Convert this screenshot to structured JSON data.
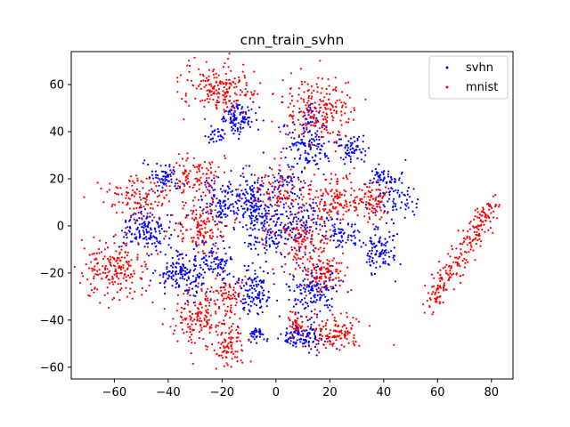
{
  "chart_data": {
    "type": "scatter",
    "title": "cnn_train_svhn",
    "xlabel": "",
    "ylabel": "",
    "xlim": [
      -76,
      88
    ],
    "ylim": [
      -65,
      74
    ],
    "xticks": [
      -60,
      -40,
      -20,
      0,
      20,
      40,
      60,
      80
    ],
    "yticks": [
      -60,
      -40,
      -20,
      0,
      20,
      40,
      60
    ],
    "xtick_labels": [
      "−60",
      "−40",
      "−20",
      "0",
      "20",
      "40",
      "60",
      "80"
    ],
    "ytick_labels": [
      "−60",
      "−40",
      "−20",
      "0",
      "20",
      "40",
      "60"
    ],
    "grid": false,
    "legend_position": "top-right",
    "seed": 1337,
    "series": [
      {
        "name": "svhn",
        "color": "#0000ff",
        "clusters": [
          {
            "cx": -14,
            "cy": 46,
            "sx": 3.5,
            "sy": 3.5,
            "n": 110
          },
          {
            "cx": -22,
            "cy": 39,
            "sx": 2,
            "sy": 2,
            "n": 30
          },
          {
            "cx": 12,
            "cy": 34,
            "sx": 5,
            "sy": 6,
            "n": 140
          },
          {
            "cx": 29,
            "cy": 33,
            "sx": 3,
            "sy": 3,
            "n": 60
          },
          {
            "cx": 12,
            "cy": 47,
            "sx": 2,
            "sy": 2,
            "n": 20
          },
          {
            "cx": -42,
            "cy": 20,
            "sx": 3,
            "sy": 3.5,
            "n": 70
          },
          {
            "cx": 40,
            "cy": 20,
            "sx": 3.5,
            "sy": 3,
            "n": 70
          },
          {
            "cx": 45,
            "cy": 9,
            "sx": 4,
            "sy": 3,
            "n": 50
          },
          {
            "cx": -48,
            "cy": -2,
            "sx": 5,
            "sy": 4,
            "n": 140
          },
          {
            "cx": -35,
            "cy": -20,
            "sx": 5,
            "sy": 5,
            "n": 160
          },
          {
            "cx": -22,
            "cy": -15,
            "sx": 4,
            "sy": 5,
            "n": 90
          },
          {
            "cx": -20,
            "cy": 10,
            "sx": 4,
            "sy": 5,
            "n": 110
          },
          {
            "cx": -8,
            "cy": 10,
            "sx": 4,
            "sy": 7,
            "n": 150
          },
          {
            "cx": 0,
            "cy": -2,
            "sx": 6,
            "sy": 7,
            "n": 160
          },
          {
            "cx": 4,
            "cy": 18,
            "sx": 3,
            "sy": 4,
            "n": 50
          },
          {
            "cx": 12,
            "cy": 2,
            "sx": 4,
            "sy": 5,
            "n": 80
          },
          {
            "cx": 25,
            "cy": -3,
            "sx": 3,
            "sy": 3,
            "n": 60
          },
          {
            "cx": 38,
            "cy": -10,
            "sx": 3,
            "sy": 5,
            "n": 100
          },
          {
            "cx": -8,
            "cy": -28,
            "sx": 3,
            "sy": 5,
            "n": 110
          },
          {
            "cx": 14,
            "cy": -28,
            "sx": 5,
            "sy": 5,
            "n": 150
          },
          {
            "cx": -7,
            "cy": -46,
            "sx": 2,
            "sy": 1.6,
            "n": 35
          },
          {
            "cx": 10,
            "cy": -47,
            "sx": 4.5,
            "sy": 3,
            "n": 110
          }
        ]
      },
      {
        "name": "mnist",
        "color": "#ff0000",
        "clusters": [
          {
            "cx": -22,
            "cy": 58,
            "sx": 7,
            "sy": 5,
            "n": 190
          },
          {
            "cx": 16,
            "cy": 50,
            "sx": 7,
            "sy": 7,
            "n": 210
          },
          {
            "cx": -30,
            "cy": 20,
            "sx": 5,
            "sy": 4,
            "n": 100
          },
          {
            "cx": -50,
            "cy": 12,
            "sx": 6,
            "sy": 5,
            "n": 120
          },
          {
            "cx": -60,
            "cy": -18,
            "sx": 6,
            "sy": 6,
            "n": 200
          },
          {
            "cx": -28,
            "cy": 0,
            "sx": 5,
            "sy": 6,
            "n": 130
          },
          {
            "cx": -28,
            "cy": -40,
            "sx": 5,
            "sy": 6,
            "n": 150
          },
          {
            "cx": -18,
            "cy": -50,
            "sx": 3,
            "sy": 5,
            "n": 90
          },
          {
            "cx": -18,
            "cy": -30,
            "sx": 3,
            "sy": 5,
            "n": 70
          },
          {
            "cx": 0,
            "cy": 15,
            "sx": 6,
            "sy": 5,
            "n": 90
          },
          {
            "cx": 20,
            "cy": 12,
            "sx": 5,
            "sy": 5,
            "n": 120
          },
          {
            "cx": 35,
            "cy": 10,
            "sx": 4,
            "sy": 4,
            "n": 90
          },
          {
            "cx": 10,
            "cy": -5,
            "sx": 6,
            "sy": 6,
            "n": 140
          },
          {
            "cx": 18,
            "cy": -20,
            "sx": 4,
            "sy": 4,
            "n": 110
          },
          {
            "cx": 22,
            "cy": -45,
            "sx": 5,
            "sy": 4,
            "n": 120
          },
          {
            "cx": 8,
            "cy": -42,
            "sx": 2,
            "sy": 3,
            "n": 40
          }
        ],
        "lines": [
          {
            "x1": 56,
            "y1": -35,
            "x2": 81,
            "y2": 10,
            "spread": 1.8,
            "n": 230
          }
        ]
      }
    ]
  }
}
